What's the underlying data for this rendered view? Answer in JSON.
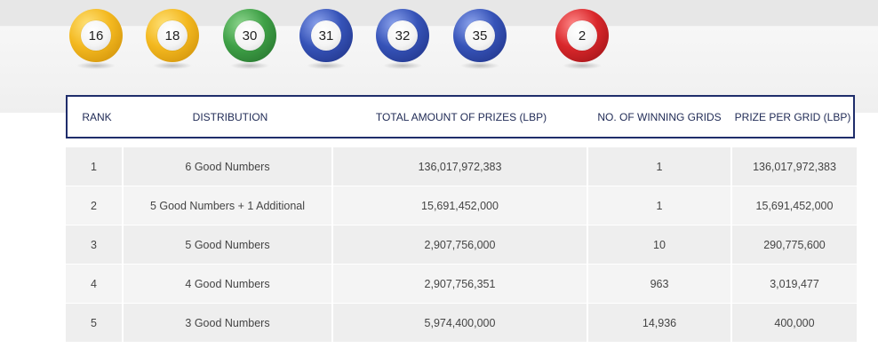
{
  "balls": [
    {
      "number": "16",
      "color": "#f3b81f"
    },
    {
      "number": "18",
      "color": "#f3b81f"
    },
    {
      "number": "30",
      "color": "#3ea046"
    },
    {
      "number": "31",
      "color": "#3653b8"
    },
    {
      "number": "32",
      "color": "#3653b8"
    },
    {
      "number": "35",
      "color": "#3653b8"
    },
    {
      "number": "2",
      "color": "#d9272b"
    }
  ],
  "table": {
    "headers": [
      "RANK",
      "DISTRIBUTION",
      "TOTAL AMOUNT OF PRIZES (LBP)",
      "NO. OF WINNING GRIDS",
      "PRIZE PER GRID (LBP)"
    ],
    "rows": [
      [
        "1",
        "6 Good Numbers",
        "136,017,972,383",
        "1",
        "136,017,972,383"
      ],
      [
        "2",
        "5 Good Numbers + 1 Additional",
        "15,691,452,000",
        "1",
        "15,691,452,000"
      ],
      [
        "3",
        "5 Good Numbers",
        "2,907,756,000",
        "10",
        "290,775,600"
      ],
      [
        "4",
        "4 Good Numbers",
        "2,907,756,351",
        "963",
        "3,019,477"
      ],
      [
        "5",
        "3 Good Numbers",
        "5,974,400,000",
        "14,936",
        "400,000"
      ]
    ]
  },
  "colors": {
    "header_border": "#1f2d6b",
    "header_text": "#1f2a55"
  }
}
